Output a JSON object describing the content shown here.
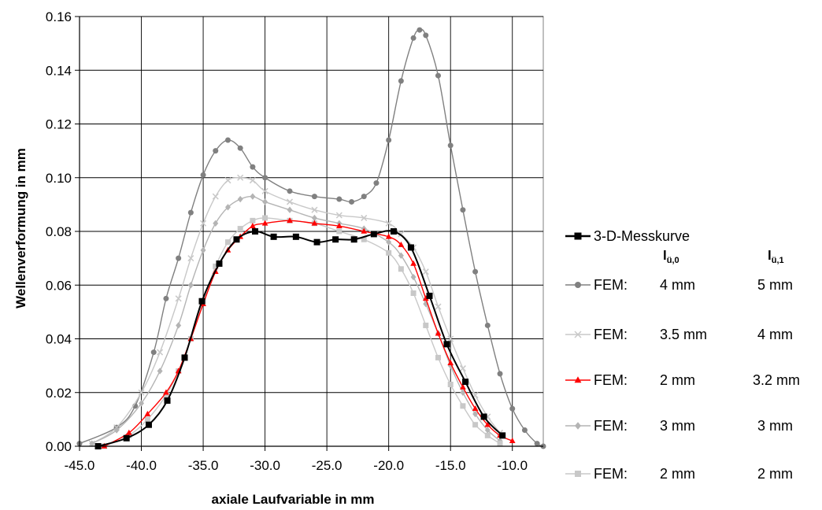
{
  "chart_data": {
    "type": "line",
    "xlabel": "axiale Laufvariable in mm",
    "ylabel": "Wellenverformung in mm",
    "xlim": [
      -45,
      -7.5
    ],
    "ylim": [
      0,
      0.16
    ],
    "x_ticks": [
      -45,
      -40,
      -35,
      -30,
      -25,
      -20,
      -15,
      -10
    ],
    "x_tick_labels": [
      "-45.0",
      "-40.0",
      "-35.0",
      "-30.0",
      "-25.0",
      "-20.0",
      "-15.0",
      "-10.0"
    ],
    "y_ticks": [
      0,
      0.02,
      0.04,
      0.06,
      0.08,
      0.1,
      0.12,
      0.14,
      0.16
    ],
    "y_tick_labels": [
      "0.00",
      "0.02",
      "0.04",
      "0.06",
      "0.08",
      "0.10",
      "0.12",
      "0.14",
      "0.16"
    ],
    "grid": true,
    "legend_position": "right",
    "legend_columns": {
      "col1_main": "l",
      "col1_sub": "ü,0",
      "col2_main": "l",
      "col2_sub": "ü,1"
    },
    "series": [
      {
        "name": "3-D-Messkurve",
        "color": "#000000",
        "marker": "square",
        "x": [
          -43.5,
          -41.2,
          -39.4,
          -37.9,
          -36.5,
          -35.1,
          -33.7,
          -32.3,
          -30.8,
          -29.3,
          -27.5,
          -25.8,
          -24.3,
          -22.8,
          -21.2,
          -19.6,
          -18.2,
          -16.7,
          -15.3,
          -13.8,
          -12.3,
          -10.8
        ],
        "y": [
          0.0,
          0.003,
          0.008,
          0.017,
          0.033,
          0.054,
          0.068,
          0.077,
          0.08,
          0.078,
          0.078,
          0.076,
          0.077,
          0.077,
          0.079,
          0.08,
          0.074,
          0.056,
          0.038,
          0.024,
          0.011,
          0.004
        ]
      },
      {
        "name": "FEM:",
        "col1": "4 mm",
        "col2": "5 mm",
        "color": "#808080",
        "marker": "circle",
        "x": [
          -45.0,
          -42.0,
          -40.5,
          -39.0,
          -38.0,
          -37.0,
          -36.0,
          -35.0,
          -34.0,
          -33.0,
          -32.0,
          -31.0,
          -30.0,
          -28.0,
          -26.0,
          -24.0,
          -23.0,
          -22.0,
          -21.0,
          -20.0,
          -19.0,
          -18.0,
          -17.5,
          -17.0,
          -16.0,
          -15.0,
          -14.0,
          -13.0,
          -12.0,
          -11.0,
          -10.0,
          -9.0,
          -8.0,
          -7.5
        ],
        "y": [
          0.001,
          0.007,
          0.015,
          0.035,
          0.055,
          0.07,
          0.087,
          0.101,
          0.11,
          0.114,
          0.111,
          0.104,
          0.1,
          0.095,
          0.093,
          0.092,
          0.091,
          0.093,
          0.098,
          0.114,
          0.136,
          0.152,
          0.155,
          0.153,
          0.138,
          0.112,
          0.088,
          0.065,
          0.045,
          0.027,
          0.014,
          0.006,
          0.001,
          0.0
        ]
      },
      {
        "name": "FEM:",
        "col1": "3.5 mm",
        "col2": "4 mm",
        "color": "#c8c8c8",
        "marker": "x",
        "x": [
          -44.0,
          -42.0,
          -40.0,
          -38.5,
          -37.0,
          -36.0,
          -35.0,
          -34.0,
          -33.0,
          -32.0,
          -31.0,
          -30.0,
          -28.0,
          -26.0,
          -24.0,
          -22.0,
          -20.0,
          -19.0,
          -18.0,
          -17.0,
          -16.0,
          -15.0,
          -14.0,
          -13.0,
          -12.0,
          -11.0
        ],
        "y": [
          0.001,
          0.007,
          0.02,
          0.035,
          0.055,
          0.07,
          0.083,
          0.093,
          0.099,
          0.1,
          0.099,
          0.095,
          0.091,
          0.088,
          0.086,
          0.085,
          0.083,
          0.079,
          0.074,
          0.065,
          0.052,
          0.04,
          0.029,
          0.019,
          0.011,
          0.005
        ]
      },
      {
        "name": "FEM:",
        "col1": "2 mm",
        "col2": "3.2 mm",
        "color": "#ff0000",
        "marker": "triangle",
        "x": [
          -43.0,
          -41.0,
          -39.5,
          -38.0,
          -37.0,
          -36.0,
          -35.0,
          -34.0,
          -33.0,
          -32.0,
          -31.0,
          -30.0,
          -28.0,
          -26.0,
          -24.0,
          -22.0,
          -20.0,
          -19.0,
          -18.0,
          -17.0,
          -16.0,
          -15.0,
          -14.0,
          -13.0,
          -12.0,
          -11.0,
          -10.0
        ],
        "y": [
          0.0,
          0.005,
          0.012,
          0.02,
          0.028,
          0.04,
          0.053,
          0.065,
          0.073,
          0.078,
          0.082,
          0.083,
          0.084,
          0.083,
          0.082,
          0.08,
          0.078,
          0.075,
          0.068,
          0.055,
          0.042,
          0.031,
          0.022,
          0.014,
          0.008,
          0.004,
          0.002
        ]
      },
      {
        "name": "FEM:",
        "col1": "3 mm",
        "col2": "3 mm",
        "color": "#b4b4b4",
        "marker": "diamond",
        "x": [
          -44.0,
          -42.0,
          -40.0,
          -38.5,
          -37.0,
          -36.0,
          -35.0,
          -34.0,
          -33.0,
          -32.0,
          -31.0,
          -30.0,
          -28.0,
          -26.0,
          -24.0,
          -22.0,
          -20.0,
          -19.0,
          -18.0,
          -17.0,
          -16.0,
          -15.0,
          -14.0,
          -13.0,
          -12.0,
          -11.0
        ],
        "y": [
          0.001,
          0.006,
          0.016,
          0.028,
          0.045,
          0.06,
          0.073,
          0.083,
          0.089,
          0.092,
          0.093,
          0.091,
          0.088,
          0.085,
          0.083,
          0.081,
          0.076,
          0.071,
          0.063,
          0.053,
          0.042,
          0.03,
          0.02,
          0.012,
          0.006,
          0.002
        ]
      },
      {
        "name": "FEM:",
        "col1": "2 mm",
        "col2": "2 mm",
        "color": "#c8c8c8",
        "marker": "square",
        "x": [
          -43.0,
          -41.0,
          -39.5,
          -38.0,
          -37.0,
          -36.0,
          -35.0,
          -34.0,
          -33.0,
          -32.0,
          -31.0,
          -30.0,
          -28.0,
          -26.0,
          -24.0,
          -22.0,
          -20.0,
          -19.0,
          -18.0,
          -17.0,
          -16.0,
          -15.0,
          -14.0,
          -13.0,
          -12.0,
          -11.0
        ],
        "y": [
          0.0,
          0.004,
          0.01,
          0.019,
          0.028,
          0.04,
          0.054,
          0.067,
          0.076,
          0.081,
          0.084,
          0.085,
          0.084,
          0.083,
          0.08,
          0.077,
          0.072,
          0.066,
          0.057,
          0.045,
          0.033,
          0.023,
          0.015,
          0.008,
          0.004,
          0.001
        ]
      }
    ]
  }
}
